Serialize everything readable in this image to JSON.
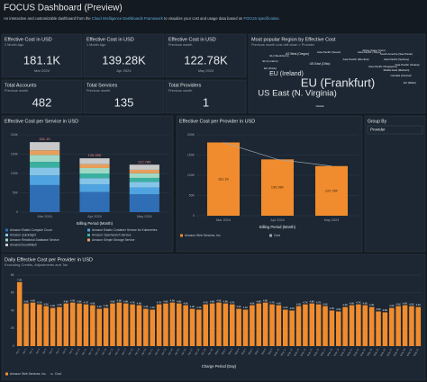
{
  "header": {
    "title": "FOCUS Dashboard (Preview)",
    "subtitle": [
      "An interactive and customizable dashboard from the ",
      "Cloud Intelligence Dashboards Framework",
      " to visualize your cost and usage data based on ",
      "FOCUS specification",
      "."
    ]
  },
  "kpis": [
    {
      "title": "Effective Cost in USD",
      "subtitle": "2 Month Ago",
      "value": "181.1K",
      "period": "Mar 2024"
    },
    {
      "title": "Effective Cost in USD",
      "subtitle": "1 Month Ago",
      "value": "139.28K",
      "period": "Apr 2024"
    },
    {
      "title": "Effective Cost in USD",
      "subtitle": "Previous month",
      "value": "122.78K",
      "period": "May 2024"
    },
    {
      "title": "Total Accounts",
      "subtitle": "Previous month",
      "value": "482"
    },
    {
      "title": "Total Services",
      "subtitle": "Previous month",
      "value": "135"
    },
    {
      "title": "Total Providers",
      "subtitle": "Previous month",
      "value": "1"
    }
  ],
  "wordcloud": {
    "title": "Most popular Region by Effective Cost",
    "subtitle": "Previous month cost drill down > Provider",
    "words": [
      "EU (Frankfurt)",
      "US East (N. Virginia)",
      "EU (Ireland)",
      "US West (Oregon)",
      "US East (Ohio)",
      "EU (London)",
      "Asia Pacific (Tokyo)",
      "Asia Pacific (Sydney)",
      "Asia Pacific (Singapore)",
      "EU (Paris)",
      "Canada (Central)",
      "South America (Sao Paulo)",
      "Asia Pacific (Mumbai)",
      "EU (Stockholm)",
      "Asia Pacific (Seoul)",
      "Middle East (Bahrain)",
      "Africa (Cape Town)",
      "Global",
      "EU (Milan)",
      "Asia Pacific (Osaka)"
    ]
  },
  "group_by": {
    "title": "Group By",
    "value": "Provider"
  },
  "chart_data": [
    {
      "type": "stacked_bar",
      "title": "Effective Cost per Service in USD",
      "x_label": "Billing Period (Month)",
      "categories": [
        "Mar 2024",
        "Apr 2024",
        "May 2024"
      ],
      "ylim": [
        0,
        200000
      ],
      "yticks": [
        0,
        {
          "value": 50000,
          "label": "50K"
        },
        {
          "value": 100000,
          "label": "100K"
        },
        {
          "value": 150000,
          "label": "150K"
        },
        {
          "value": 200000,
          "label": "200K"
        }
      ],
      "series": [
        {
          "name": "Amazon Elastic Compute Cloud",
          "color": "#2f6eb5",
          "values": [
            70000,
            52000,
            46000
          ]
        },
        {
          "name": "Amazon Elastic Container Service for Kubernetes",
          "color": "#4fa3e0",
          "values": [
            25000,
            20000,
            18000
          ]
        },
        {
          "name": "Amazon QuickSight",
          "color": "#86c5e8",
          "values": [
            20000,
            16000,
            14000
          ]
        },
        {
          "name": "Amazon OpenSearch Service",
          "color": "#3ab0a0",
          "values": [
            15000,
            12000,
            10500
          ]
        },
        {
          "name": "Amazon Relational Database Service",
          "color": "#9fd9c6",
          "values": [
            18000,
            14000,
            12000
          ]
        },
        {
          "name": "Amazon Simple Storage Service",
          "color": "#e8a05c",
          "values": [
            12000,
            10000,
            9000
          ]
        },
        {
          "name": "AmazonCloudWatch",
          "color": "#c9c9c9",
          "values": [
            21100,
            15280,
            13280
          ]
        }
      ],
      "totals": [
        181100,
        139280,
        122780
      ],
      "total_labels": [
        "181.1K",
        "139.28K",
        "122.78K"
      ]
    },
    {
      "type": "bar_line",
      "title": "Effective Cost per Provider in USD",
      "x_label": "Billing Period (Month)",
      "categories": [
        "Mar 2024",
        "Apr 2024",
        "May 2024"
      ],
      "ylim": [
        0,
        200000
      ],
      "yticks": [
        0,
        {
          "value": 50000,
          "label": "50K"
        },
        {
          "value": 100000,
          "label": "100K"
        },
        {
          "value": 150000,
          "label": "150K"
        },
        {
          "value": 200000,
          "label": "200K"
        }
      ],
      "series": [
        {
          "name": "Amazon Web Services, Inc.",
          "color": "#f08c2e",
          "values": [
            181100,
            139280,
            122780
          ],
          "value_labels": [
            "181.1K",
            "139.28K",
            "122.78K"
          ]
        },
        {
          "name": "Cost",
          "color": "#9aa5b1",
          "values": [
            181100,
            139280,
            122780
          ]
        }
      ]
    },
    {
      "type": "bar",
      "title": "Daily Effective Cost per Provider in USD",
      "subtitle": "Excluding Credits, Adjustments and Tax",
      "x_label": "Charge Period (Day)",
      "categories": [
        "Apr 1",
        "Apr 2",
        "Apr 3",
        "Apr 4",
        "Apr 5",
        "Apr 6",
        "Apr 7",
        "Apr 8",
        "Apr 9",
        "Apr 10",
        "Apr 11",
        "Apr 12",
        "Apr 13",
        "Apr 14",
        "Apr 15",
        "Apr 16",
        "Apr 17",
        "Apr 18",
        "Apr 19",
        "Apr 20",
        "Apr 21",
        "Apr 22",
        "Apr 23",
        "Apr 24",
        "Apr 25",
        "Apr 26",
        "Apr 27",
        "Apr 28",
        "Apr 29",
        "Apr 30",
        "May 1",
        "May 2",
        "May 3",
        "May 4",
        "May 5",
        "May 6",
        "May 7",
        "May 8",
        "May 9",
        "May 10",
        "May 11",
        "May 12",
        "May 13",
        "May 14",
        "May 15",
        "May 16",
        "May 17",
        "May 18",
        "May 19",
        "May 20",
        "May 21",
        "May 22",
        "May 23",
        "May 24",
        "May 25",
        "May 26",
        "May 27",
        "May 28",
        "May 29",
        "May 30",
        "May 31"
      ],
      "ylim": [
        0,
        8000
      ],
      "yticks": [
        0,
        {
          "value": 2000,
          "label": "2K"
        },
        {
          "value": 4000,
          "label": "4K"
        },
        {
          "value": 6000,
          "label": "6K"
        },
        {
          "value": 8000,
          "label": "8K"
        }
      ],
      "series": [
        {
          "name": "Amazon Web Services, Inc.",
          "color": "#f08c2e",
          "values": [
            7200,
            4800,
            4900,
            4700,
            4500,
            4300,
            4400,
            4800,
            4900,
            4800,
            4700,
            4600,
            4200,
            4300,
            4800,
            4900,
            4800,
            4700,
            4600,
            4200,
            4100,
            4700,
            4800,
            4900,
            4800,
            4600,
            4200,
            4100,
            4700,
            4800,
            4900,
            4800,
            4700,
            4200,
            4100,
            4600,
            4800,
            4900,
            4700,
            4600,
            4100,
            4000,
            4500,
            4700,
            4800,
            4700,
            4500,
            4000,
            3900,
            4400,
            4600,
            4700,
            4600,
            4400,
            3900,
            3800,
            4300,
            4500,
            4600,
            4500,
            4400
          ],
          "value_labels": [
            "7.2K",
            "4.8K",
            "4.9K",
            "4.7K",
            "4.5K",
            "4.3K",
            "4.4K",
            "4.8K",
            "4.9K",
            "4.8K",
            "4.7K",
            "4.6K",
            "4.2K",
            "4.3K",
            "4.8K",
            "4.9K",
            "4.8K",
            "4.7K",
            "4.6K",
            "4.2K",
            "4.1K",
            "4.7K",
            "4.8K",
            "4.9K",
            "4.8K",
            "4.6K",
            "4.2K",
            "4.1K",
            "4.7K",
            "4.8K",
            "4.9K",
            "4.8K",
            "4.7K",
            "4.2K",
            "4.1K",
            "4.6K",
            "4.8K",
            "4.9K",
            "4.7K",
            "4.6K",
            "4.1K",
            "4.0K",
            "4.5K",
            "4.7K",
            "4.8K",
            "4.7K",
            "4.5K",
            "4.0K",
            "3.9K",
            "4.4K",
            "4.6K",
            "4.7K",
            "4.6K",
            "4.4K",
            "3.9K",
            "3.8K",
            "4.3K",
            "4.5K",
            "4.6K",
            "4.5K",
            "4.4K"
          ]
        },
        {
          "name": "Cost",
          "color": "#9aa5b1"
        }
      ]
    }
  ]
}
